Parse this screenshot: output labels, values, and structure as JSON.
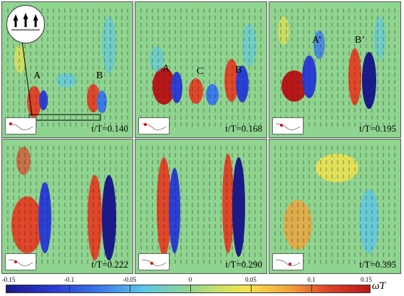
{
  "panels": [
    {
      "time": "t/T=0.140",
      "labels": [
        "A",
        "B"
      ],
      "zoom_inset": true
    },
    {
      "time": "t/T=0.168",
      "labels": [
        "A",
        "C",
        "B"
      ],
      "zoom_inset": false
    },
    {
      "time": "t/T=0.195",
      "labels": [
        "A’",
        "B’"
      ],
      "zoom_inset": false
    },
    {
      "time": "t/T=0.222",
      "labels": [],
      "zoom_inset": false
    },
    {
      "time": "t/T=0.290",
      "labels": [],
      "zoom_inset": false
    },
    {
      "time": "t/T=0.395",
      "labels": [],
      "zoom_inset": false
    }
  ],
  "colorbar": {
    "ticks": [
      "-0.15",
      "-0.1",
      "-0.05",
      "0",
      "0.05",
      "0.1",
      "0.15"
    ],
    "label": "ω̄T",
    "colors": {
      "min": "#1a1a8c",
      "mid": "#8fd48f",
      "max": "#b81818"
    }
  }
}
